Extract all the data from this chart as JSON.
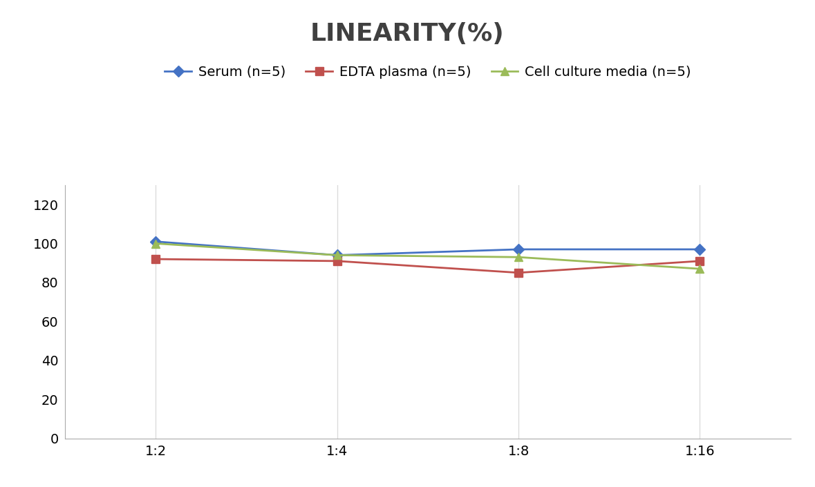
{
  "title": "LINEARITY(%)",
  "title_fontsize": 26,
  "title_fontweight": "bold",
  "title_color": "#404040",
  "x_labels": [
    "1:2",
    "1:4",
    "1:8",
    "1:16"
  ],
  "x_positions": [
    0,
    1,
    2,
    3
  ],
  "series": [
    {
      "label": "Serum (n=5)",
      "values": [
        101,
        94,
        97,
        97
      ],
      "color": "#4472C4",
      "marker": "D",
      "markersize": 8,
      "linewidth": 2.0
    },
    {
      "label": "EDTA plasma (n=5)",
      "values": [
        92,
        91,
        85,
        91
      ],
      "color": "#C0504D",
      "marker": "s",
      "markersize": 8,
      "linewidth": 2.0
    },
    {
      "label": "Cell culture media (n=5)",
      "values": [
        100,
        94,
        93,
        87
      ],
      "color": "#9BBB59",
      "marker": "^",
      "markersize": 8,
      "linewidth": 2.0
    }
  ],
  "ylim": [
    0,
    130
  ],
  "yticks": [
    0,
    20,
    40,
    60,
    80,
    100,
    120
  ],
  "ylabel": "",
  "xlabel": "",
  "grid_color": "#D3D3D3",
  "grid_alpha": 0.8,
  "background_color": "#FFFFFF",
  "legend_fontsize": 14,
  "tick_fontsize": 14,
  "axis_fontsize": 13
}
